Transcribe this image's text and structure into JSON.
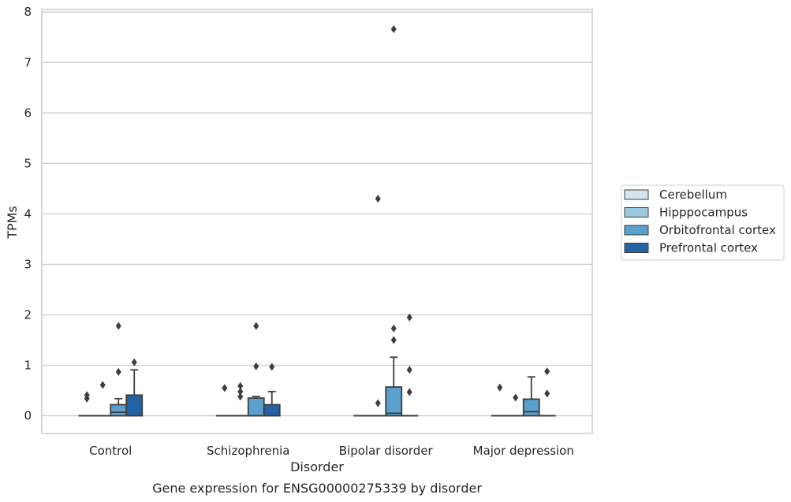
{
  "chart_data": {
    "type": "box",
    "title": "",
    "caption": "Gene expression for ENSG00000275339 by disorder",
    "xlabel": "Disorder",
    "ylabel": "TPMs",
    "ylim": [
      -0.35,
      8.05
    ],
    "yticks": [
      "0",
      "1",
      "2",
      "3",
      "4",
      "5",
      "6",
      "7",
      "8"
    ],
    "categories": [
      "Control",
      "Schizophrenia",
      "Bipolar disorder",
      "Major depression"
    ],
    "grid": "horizontal",
    "legend_position": "right",
    "colors": {
      "Cerebellum": "#d3e5f3",
      "Hipppocampus": "#9ac8e0",
      "Orbitofrontal cortex": "#5aa0cd",
      "Prefrontal cortex": "#2462a6",
      "line": "#3d3d3d",
      "grid": "#cccccc"
    },
    "series": [
      {
        "name": "Cerebellum",
        "boxes": [
          {
            "q1": 0,
            "median": 0,
            "q3": 0,
            "whisker_low": 0,
            "whisker_high": 0,
            "outliers": [
              0.34,
              0.41
            ]
          },
          {
            "q1": 0,
            "median": 0,
            "q3": 0,
            "whisker_low": 0,
            "whisker_high": 0,
            "outliers": [
              0.55
            ]
          },
          {
            "q1": 0,
            "median": 0,
            "q3": 0,
            "whisker_low": 0,
            "whisker_high": 0,
            "outliers": []
          },
          {
            "q1": 0,
            "median": 0,
            "q3": 0,
            "whisker_low": 0,
            "whisker_high": 0,
            "outliers": [
              0.56
            ]
          }
        ]
      },
      {
        "name": "Hipppocampus",
        "boxes": [
          {
            "q1": 0,
            "median": 0,
            "q3": 0,
            "whisker_low": 0,
            "whisker_high": 0,
            "outliers": [
              0.61
            ]
          },
          {
            "q1": 0,
            "median": 0,
            "q3": 0,
            "whisker_low": 0,
            "whisker_high": 0,
            "outliers": [
              0.38,
              0.48,
              0.59
            ]
          },
          {
            "q1": 0,
            "median": 0,
            "q3": 0,
            "whisker_low": 0,
            "whisker_high": 0,
            "outliers": [
              0.25,
              4.3
            ]
          },
          {
            "q1": 0,
            "median": 0,
            "q3": 0,
            "whisker_low": 0,
            "whisker_high": 0,
            "outliers": [
              0.36
            ]
          }
        ]
      },
      {
        "name": "Orbitofrontal cortex",
        "boxes": [
          {
            "q1": 0,
            "median": 0.07,
            "q3": 0.22,
            "whisker_low": 0,
            "whisker_high": 0.34,
            "outliers": [
              0.87,
              1.78
            ]
          },
          {
            "q1": 0,
            "median": 0,
            "q3": 0.35,
            "whisker_low": 0,
            "whisker_high": 0.38,
            "outliers": [
              0.98,
              1.78
            ]
          },
          {
            "q1": 0,
            "median": 0.05,
            "q3": 0.57,
            "whisker_low": 0,
            "whisker_high": 1.16,
            "outliers": [
              1.5,
              1.73,
              7.66
            ]
          },
          {
            "q1": 0,
            "median": 0.08,
            "q3": 0.33,
            "whisker_low": 0,
            "whisker_high": 0.77,
            "outliers": []
          }
        ]
      },
      {
        "name": "Prefrontal cortex",
        "boxes": [
          {
            "q1": 0,
            "median": 0,
            "q3": 0.41,
            "whisker_low": 0,
            "whisker_high": 0.91,
            "outliers": [
              1.06
            ]
          },
          {
            "q1": 0,
            "median": 0,
            "q3": 0.22,
            "whisker_low": 0,
            "whisker_high": 0.48,
            "outliers": [
              0.97
            ]
          },
          {
            "q1": 0,
            "median": 0,
            "q3": 0,
            "whisker_low": 0,
            "whisker_high": 0,
            "outliers": [
              0.47,
              0.91,
              1.95
            ]
          },
          {
            "q1": 0,
            "median": 0,
            "q3": 0,
            "whisker_low": 0,
            "whisker_high": 0,
            "outliers": [
              0.44,
              0.88
            ]
          }
        ]
      }
    ]
  }
}
